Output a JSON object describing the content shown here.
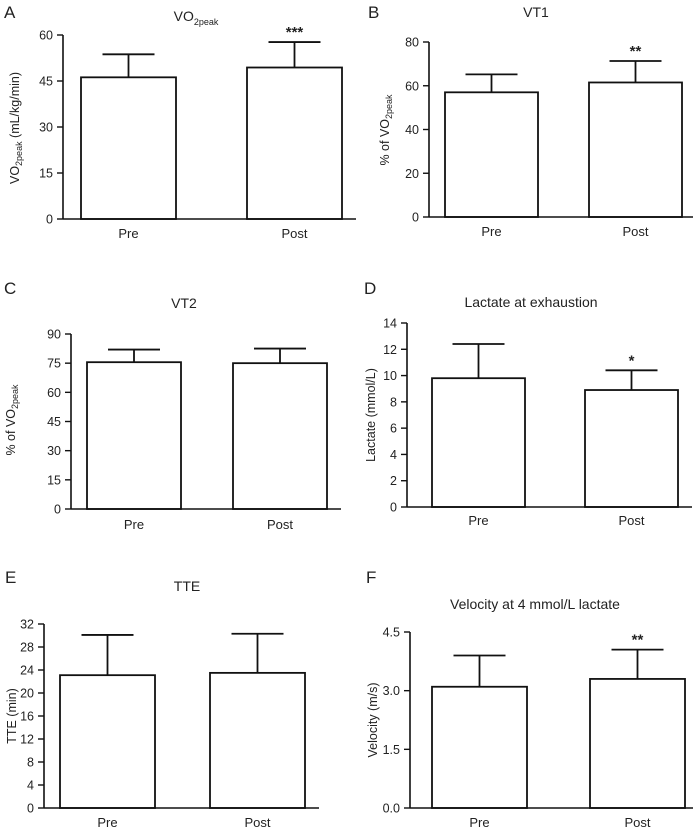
{
  "chart_data": [
    {
      "panel": "A",
      "type": "bar",
      "title": "VO",
      "title_sub": "2peak",
      "ylabel_parts": [
        {
          "t": "VO"
        },
        {
          "t": "2peak",
          "sub": true
        },
        {
          "t": " (mL/kg/min)"
        }
      ],
      "categories": [
        "Pre",
        "Post"
      ],
      "values": [
        46.2,
        49.4
      ],
      "errors": [
        7.5,
        8.3
      ],
      "significance": [
        "",
        "***"
      ],
      "ylim": [
        0,
        60
      ],
      "yticks": [
        0,
        15,
        30,
        45,
        60
      ],
      "tick_labels": [
        "0",
        "15",
        "30",
        "45",
        "60"
      ]
    },
    {
      "panel": "B",
      "type": "bar",
      "title": "VT1",
      "ylabel_parts": [
        {
          "t": "% of VO"
        },
        {
          "t": "2peak",
          "sub": true
        }
      ],
      "categories": [
        "Pre",
        "Post"
      ],
      "values": [
        57,
        61.5
      ],
      "errors": [
        8.2,
        9.8
      ],
      "significance": [
        "",
        "**"
      ],
      "ylim": [
        0,
        80
      ],
      "yticks": [
        0,
        20,
        40,
        60,
        80
      ],
      "tick_labels": [
        "0",
        "20",
        "40",
        "60",
        "80"
      ]
    },
    {
      "panel": "C",
      "type": "bar",
      "title": "VT2",
      "ylabel_parts": [
        {
          "t": "% of VO"
        },
        {
          "t": "2peak",
          "sub": true
        }
      ],
      "categories": [
        "Pre",
        "Post"
      ],
      "values": [
        75.5,
        75
      ],
      "errors": [
        6.5,
        7.5
      ],
      "significance": [
        "",
        ""
      ],
      "ylim": [
        0,
        90
      ],
      "yticks": [
        0,
        15,
        30,
        45,
        60,
        75,
        90
      ],
      "tick_labels": [
        "0",
        "15",
        "30",
        "45",
        "60",
        "75",
        "90"
      ]
    },
    {
      "panel": "D",
      "type": "bar",
      "title": "Lactate at exhaustion",
      "ylabel_parts": [
        {
          "t": "Lactate (mmol/L)"
        }
      ],
      "categories": [
        "Pre",
        "Post"
      ],
      "values": [
        9.8,
        8.9
      ],
      "errors": [
        2.6,
        1.5
      ],
      "significance": [
        "",
        "*"
      ],
      "ylim": [
        0,
        14
      ],
      "yticks": [
        0,
        2,
        4,
        6,
        8,
        10,
        12,
        14
      ],
      "tick_labels": [
        "0",
        "2",
        "4",
        "6",
        "8",
        "10",
        "12",
        "14"
      ]
    },
    {
      "panel": "E",
      "type": "bar",
      "title": "TTE",
      "ylabel_parts": [
        {
          "t": "TTE (min)"
        }
      ],
      "categories": [
        "Pre",
        "Post"
      ],
      "values": [
        23.1,
        23.5
      ],
      "errors": [
        7.0,
        6.8
      ],
      "significance": [
        "",
        ""
      ],
      "ylim": [
        0,
        32
      ],
      "yticks": [
        0,
        4,
        8,
        12,
        16,
        20,
        24,
        28,
        32
      ],
      "tick_labels": [
        "0",
        "4",
        "8",
        "12",
        "16",
        "20",
        "24",
        "28",
        "32"
      ]
    },
    {
      "panel": "F",
      "type": "bar",
      "title": "Velocity at 4 mmol/L lactate",
      "ylabel_parts": [
        {
          "t": "Velocity (m/s)"
        }
      ],
      "categories": [
        "Pre",
        "Post"
      ],
      "values": [
        3.1,
        3.3
      ],
      "errors": [
        0.8,
        0.75
      ],
      "significance": [
        "",
        "**"
      ],
      "ylim": [
        0,
        4.5
      ],
      "yticks": [
        0,
        1.5,
        3.0,
        4.5
      ],
      "tick_labels": [
        "0.0",
        "1.5",
        "3.0",
        "4.5"
      ]
    }
  ]
}
